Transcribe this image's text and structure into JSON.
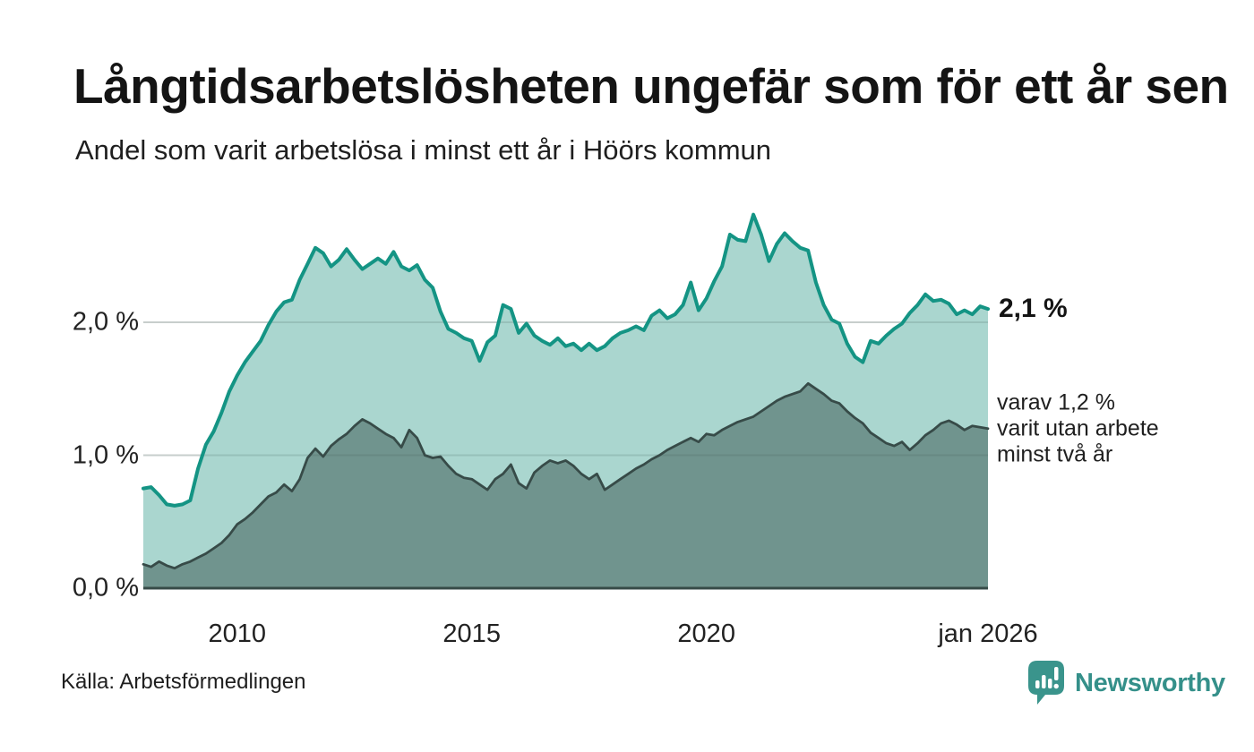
{
  "header": {
    "title": "Långtidsarbetslösheten ungefär som för ett år sen",
    "subtitle": "Andel som varit arbetslösa i minst ett år i Höörs kommun"
  },
  "annotations": {
    "series1_end": "2,1 %",
    "series2_end_lines": [
      "varav 1,2 %",
      "varit utan arbete",
      "minst två år"
    ]
  },
  "footer": {
    "source": "Källa: Arbetsförmedlingen",
    "brand": "Newsworthy"
  },
  "colors": {
    "accent_line": "#149484",
    "accent_fill": "#aad6cf",
    "dark_line": "#374b48",
    "dark_fill": "#70948e",
    "gridline_base": "#e3e6e5",
    "gridline_overlay": "rgba(55,80,76,0.16)",
    "baseline": "#374b48",
    "brand_teal": "#35908a",
    "badge_teal": "#3a948c"
  },
  "chart_data": {
    "type": "area",
    "title": "Andel som varit arbetslösa i minst ett år i Höörs kommun",
    "unit": "%",
    "x_start": "2008-01",
    "x_end": "2026-01",
    "interval_months": 2,
    "ylim": [
      0,
      2.9
    ],
    "grid": "horizontal",
    "legend_position": "right-end-labels",
    "x_ticks": [
      {
        "label": "2010",
        "index": 12
      },
      {
        "label": "2015",
        "index": 42
      },
      {
        "label": "2020",
        "index": 72
      },
      {
        "label": "jan 2026",
        "index": 108
      }
    ],
    "y_ticks": [
      {
        "label": "0,0 %",
        "value": 0
      },
      {
        "label": "1,0 %",
        "value": 1
      },
      {
        "label": "2,0 %",
        "value": 2
      }
    ],
    "series": [
      {
        "name": "Arbetslösa minst ett år",
        "end_label": "2,1 %",
        "color": "#149484",
        "fill": "#aad6cf",
        "line_width": 4,
        "values": [
          0.75,
          0.76,
          0.7,
          0.63,
          0.62,
          0.63,
          0.66,
          0.9,
          1.08,
          1.18,
          1.32,
          1.48,
          1.6,
          1.7,
          1.78,
          1.86,
          1.98,
          2.08,
          2.15,
          2.17,
          2.32,
          2.44,
          2.56,
          2.52,
          2.42,
          2.47,
          2.55,
          2.47,
          2.4,
          2.44,
          2.48,
          2.44,
          2.53,
          2.42,
          2.39,
          2.43,
          2.32,
          2.26,
          2.08,
          1.95,
          1.92,
          1.88,
          1.86,
          1.71,
          1.85,
          1.9,
          2.13,
          2.1,
          1.92,
          1.99,
          1.9,
          1.86,
          1.83,
          1.88,
          1.82,
          1.84,
          1.79,
          1.84,
          1.79,
          1.82,
          1.88,
          1.92,
          1.94,
          1.97,
          1.94,
          2.05,
          2.09,
          2.03,
          2.06,
          2.13,
          2.3,
          2.09,
          2.18,
          2.31,
          2.42,
          2.66,
          2.62,
          2.61,
          2.81,
          2.66,
          2.46,
          2.59,
          2.67,
          2.61,
          2.56,
          2.54,
          2.3,
          2.13,
          2.02,
          1.99,
          1.84,
          1.74,
          1.7,
          1.86,
          1.84,
          1.9,
          1.95,
          1.99,
          2.07,
          2.13,
          2.21,
          2.16,
          2.17,
          2.14,
          2.06,
          2.09,
          2.06,
          2.12,
          2.1
        ]
      },
      {
        "name": "Arbetslösa minst två år",
        "end_label": "varav 1,2 % varit utan arbete minst två år",
        "color": "#374b48",
        "fill": "#70948e",
        "line_width": 2.8,
        "values": [
          0.18,
          0.16,
          0.2,
          0.17,
          0.15,
          0.18,
          0.2,
          0.23,
          0.26,
          0.3,
          0.34,
          0.4,
          0.48,
          0.52,
          0.57,
          0.63,
          0.69,
          0.72,
          0.78,
          0.73,
          0.82,
          0.98,
          1.05,
          0.99,
          1.07,
          1.12,
          1.16,
          1.22,
          1.27,
          1.24,
          1.2,
          1.16,
          1.13,
          1.06,
          1.19,
          1.13,
          1.0,
          0.98,
          0.99,
          0.92,
          0.86,
          0.83,
          0.82,
          0.78,
          0.74,
          0.82,
          0.86,
          0.93,
          0.79,
          0.75,
          0.87,
          0.92,
          0.96,
          0.94,
          0.96,
          0.92,
          0.86,
          0.82,
          0.86,
          0.74,
          0.78,
          0.82,
          0.86,
          0.9,
          0.93,
          0.97,
          1.0,
          1.04,
          1.07,
          1.1,
          1.13,
          1.1,
          1.16,
          1.15,
          1.19,
          1.22,
          1.25,
          1.27,
          1.29,
          1.33,
          1.37,
          1.41,
          1.44,
          1.46,
          1.48,
          1.54,
          1.5,
          1.46,
          1.41,
          1.39,
          1.33,
          1.28,
          1.24,
          1.17,
          1.13,
          1.09,
          1.07,
          1.1,
          1.04,
          1.09,
          1.15,
          1.19,
          1.24,
          1.26,
          1.23,
          1.19,
          1.22,
          1.21,
          1.2
        ]
      }
    ]
  }
}
